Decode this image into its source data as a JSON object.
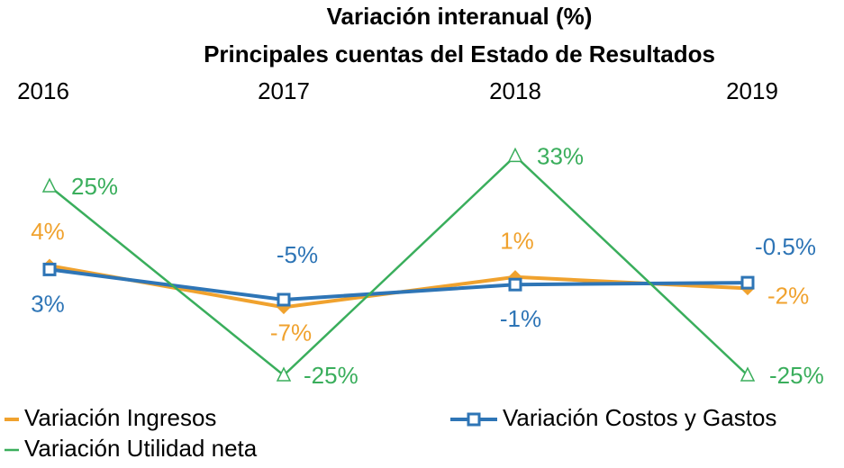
{
  "chart_data": {
    "type": "line",
    "title": "Variación interanual  (%)",
    "subtitle": "Principales cuentas del  Estado de Resultados",
    "categories": [
      "2016",
      "2017",
      "2018",
      "2019"
    ],
    "ylim": [
      -30,
      40
    ],
    "series": [
      {
        "name": "Variación Ingresos",
        "color": "#f0a22e",
        "marker": "diamond",
        "values": [
          4,
          -7,
          1,
          -2
        ],
        "value_labels": [
          "4%",
          "-7%",
          "1%",
          "-2%"
        ]
      },
      {
        "name": "Variación Costos y Gastos",
        "color": "#2e75b6",
        "marker": "square",
        "values": [
          3,
          -5,
          -1,
          -0.5
        ],
        "value_labels": [
          "3%",
          "-5%",
          "-1%",
          "-0.5%"
        ]
      },
      {
        "name": "Variación Utilidad neta",
        "color": "#3aae5c",
        "marker": "triangle",
        "values": [
          25,
          -25,
          33,
          -25
        ],
        "value_labels": [
          "25%",
          "-25%",
          "33%",
          "-25%"
        ]
      }
    ]
  }
}
